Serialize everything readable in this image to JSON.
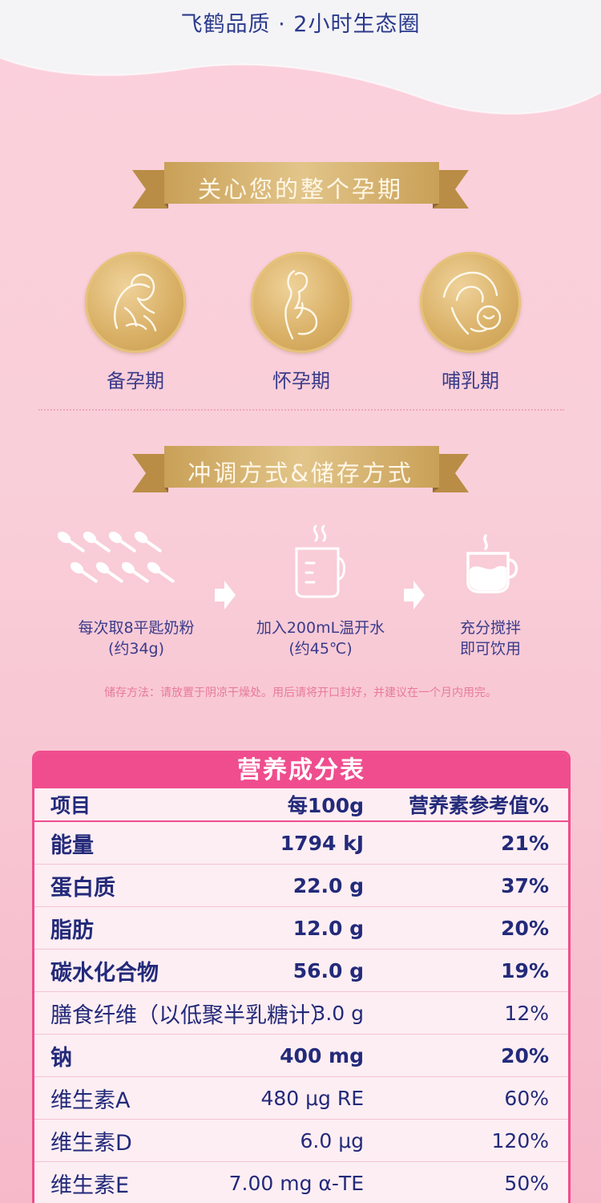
{
  "header": {
    "title": "飞鹤品质 · 2小时生态圈"
  },
  "section_stages": {
    "title": "关心您的整个孕期",
    "items": [
      {
        "label": "备孕期",
        "icon": "woman-preparing-icon"
      },
      {
        "label": "怀孕期",
        "icon": "pregnant-woman-icon"
      },
      {
        "label": "哺乳期",
        "icon": "breastfeeding-mother-icon"
      }
    ]
  },
  "section_prep": {
    "title": "冲调方式&储存方式",
    "steps": [
      {
        "line1": "每次取8平匙奶粉",
        "line2": "(约34g)",
        "icon": "measuring-spoons-icon"
      },
      {
        "line1": "加入200mL温开水",
        "line2": "(约45℃)",
        "icon": "measuring-cup-icon"
      },
      {
        "line1": "充分搅拌",
        "line2": "即可饮用",
        "icon": "hot-drink-mug-icon"
      }
    ],
    "storage_note": "储存方法：请放置于阴凉干燥处。用后请将开口封好，并建议在一个月内用完。"
  },
  "nutrition": {
    "title": "营养成分表",
    "columns": [
      "项目",
      "每100g",
      "营养素参考值%"
    ],
    "rows": [
      {
        "item": "能量",
        "per100g": "1794 kJ",
        "nrv": "21%",
        "bold": true
      },
      {
        "item": "蛋白质",
        "per100g": "22.0 g",
        "nrv": "37%",
        "bold": true
      },
      {
        "item": "脂肪",
        "per100g": "12.0 g",
        "nrv": "20%",
        "bold": true
      },
      {
        "item": "碳水化合物",
        "per100g": "56.0 g",
        "nrv": "19%",
        "bold": true
      },
      {
        "item": "膳食纤维（以低聚半乳糖计）",
        "per100g": "3.0 g",
        "nrv": "12%",
        "bold": false
      },
      {
        "item": "钠",
        "per100g": "400 mg",
        "nrv": "20%",
        "bold": true
      },
      {
        "item": "维生素A",
        "per100g": "480 μg RE",
        "nrv": "60%",
        "bold": false
      },
      {
        "item": "维生素D",
        "per100g": "6.0 μg",
        "nrv": "120%",
        "bold": false
      },
      {
        "item": "维生素E",
        "per100g": "7.00 mg α-TE",
        "nrv": "50%",
        "bold": false
      }
    ]
  },
  "colors": {
    "accent_pink": "#ef4d8e",
    "gold": "#d6ad62",
    "navy_text": "#2b3a8c"
  }
}
